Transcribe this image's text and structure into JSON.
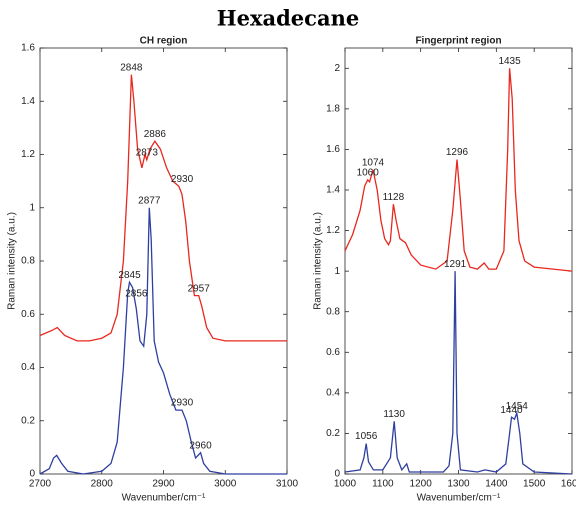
{
  "title": "Hexadecane",
  "chart_data": [
    {
      "type": "line",
      "title": "CH region",
      "xlabel": "Wavenumber/cm⁻¹",
      "ylabel": "Raman intensity (a.u.)",
      "xlim": [
        2700,
        3100
      ],
      "xticks": [
        2700,
        2800,
        2900,
        3000,
        3100
      ],
      "ylim": [
        0,
        1.6
      ],
      "yticks": [
        0,
        0.2,
        0.4,
        0.6,
        0.8,
        1,
        1.2,
        1.4,
        1.6
      ],
      "grid": false,
      "series": [
        {
          "color": "#e8281e",
          "x": [
            2700,
            2720,
            2728,
            2740,
            2760,
            2780,
            2800,
            2815,
            2825,
            2835,
            2842,
            2848,
            2852,
            2858,
            2865,
            2870,
            2873,
            2878,
            2886,
            2895,
            2905,
            2915,
            2925,
            2930,
            2936,
            2942,
            2950,
            2957,
            2962,
            2970,
            2980,
            3000,
            3050,
            3100
          ],
          "values": [
            0.52,
            0.54,
            0.55,
            0.52,
            0.5,
            0.5,
            0.51,
            0.53,
            0.6,
            0.8,
            1.1,
            1.5,
            1.4,
            1.22,
            1.15,
            1.2,
            1.18,
            1.22,
            1.25,
            1.22,
            1.15,
            1.1,
            1.08,
            1.05,
            0.95,
            0.8,
            0.67,
            0.67,
            0.63,
            0.55,
            0.51,
            0.5,
            0.5,
            0.5
          ]
        },
        {
          "color": "#2f3fa0",
          "x": [
            2700,
            2715,
            2722,
            2727,
            2735,
            2745,
            2770,
            2800,
            2815,
            2825,
            2835,
            2842,
            2845,
            2850,
            2856,
            2862,
            2868,
            2873,
            2877,
            2880,
            2885,
            2892,
            2900,
            2910,
            2920,
            2930,
            2937,
            2945,
            2952,
            2960,
            2965,
            2975,
            3000,
            3100
          ],
          "values": [
            0,
            0.02,
            0.06,
            0.07,
            0.04,
            0.01,
            0,
            0.01,
            0.04,
            0.12,
            0.4,
            0.68,
            0.72,
            0.7,
            0.62,
            0.5,
            0.48,
            0.6,
            1.0,
            0.88,
            0.5,
            0.42,
            0.38,
            0.3,
            0.24,
            0.24,
            0.2,
            0.12,
            0.06,
            0.08,
            0.04,
            0.01,
            0,
            0
          ]
        }
      ],
      "annotations": [
        {
          "label": "2848",
          "x": 2848,
          "y": 1.5
        },
        {
          "label": "2886",
          "x": 2886,
          "y": 1.25
        },
        {
          "label": "2873",
          "x": 2873,
          "y": 1.18
        },
        {
          "label": "2930",
          "x": 2930,
          "y": 1.08
        },
        {
          "label": "2877",
          "x": 2877,
          "y": 1.0
        },
        {
          "label": "2845",
          "x": 2845,
          "y": 0.72
        },
        {
          "label": "2856",
          "x": 2856,
          "y": 0.65
        },
        {
          "label": "2957",
          "x": 2957,
          "y": 0.67
        },
        {
          "label": "2930",
          "x": 2930,
          "y": 0.24
        },
        {
          "label": "2960",
          "x": 2960,
          "y": 0.08
        }
      ]
    },
    {
      "type": "line",
      "title": "Fingerprint region",
      "xlabel": "Wavenumber/cm⁻¹",
      "ylabel": "Raman intensity (a.u.)",
      "xlim": [
        1000,
        1600
      ],
      "xticks": [
        1000,
        1100,
        1200,
        1300,
        1400,
        1500,
        1600
      ],
      "ylim": [
        0,
        2.1
      ],
      "yticks": [
        0,
        0.2,
        0.4,
        0.6,
        0.8,
        1,
        1.2,
        1.4,
        1.6,
        1.8,
        2
      ],
      "grid": false,
      "series": [
        {
          "color": "#e8281e",
          "x": [
            1000,
            1020,
            1040,
            1052,
            1060,
            1065,
            1074,
            1085,
            1095,
            1105,
            1115,
            1120,
            1128,
            1135,
            1145,
            1160,
            1175,
            1200,
            1240,
            1270,
            1285,
            1296,
            1305,
            1315,
            1330,
            1350,
            1368,
            1380,
            1400,
            1420,
            1430,
            1435,
            1442,
            1450,
            1460,
            1475,
            1500,
            1550,
            1600
          ],
          "values": [
            1.1,
            1.18,
            1.3,
            1.42,
            1.45,
            1.44,
            1.5,
            1.4,
            1.25,
            1.16,
            1.13,
            1.15,
            1.33,
            1.25,
            1.16,
            1.14,
            1.08,
            1.03,
            1.01,
            1.05,
            1.3,
            1.55,
            1.35,
            1.1,
            1.02,
            1.01,
            1.04,
            1.01,
            1.01,
            1.1,
            1.6,
            2.0,
            1.85,
            1.4,
            1.15,
            1.05,
            1.02,
            1.01,
            1.0
          ]
        },
        {
          "color": "#2f3fa0",
          "x": [
            1000,
            1040,
            1050,
            1056,
            1062,
            1075,
            1100,
            1120,
            1130,
            1138,
            1150,
            1163,
            1170,
            1200,
            1260,
            1275,
            1285,
            1291,
            1296,
            1305,
            1350,
            1370,
            1400,
            1425,
            1435,
            1440,
            1448,
            1454,
            1462,
            1470,
            1500,
            1600
          ],
          "values": [
            0.01,
            0.02,
            0.08,
            0.15,
            0.06,
            0.02,
            0.02,
            0.08,
            0.26,
            0.08,
            0.02,
            0.05,
            0.01,
            0.01,
            0.01,
            0.04,
            0.2,
            1.0,
            0.2,
            0.02,
            0.01,
            0.02,
            0.01,
            0.05,
            0.2,
            0.28,
            0.27,
            0.3,
            0.2,
            0.05,
            0.01,
            0
          ]
        }
      ],
      "annotations": [
        {
          "label": "1435",
          "x": 1435,
          "y": 2.0
        },
        {
          "label": "1296",
          "x": 1296,
          "y": 1.55
        },
        {
          "label": "1074",
          "x": 1074,
          "y": 1.5
        },
        {
          "label": "1060",
          "x": 1060,
          "y": 1.45
        },
        {
          "label": "1128",
          "x": 1128,
          "y": 1.33
        },
        {
          "label": "1291",
          "x": 1291,
          "y": 1.0
        },
        {
          "label": "1130",
          "x": 1130,
          "y": 0.26
        },
        {
          "label": "1056",
          "x": 1056,
          "y": 0.15
        },
        {
          "label": "1440",
          "x": 1440,
          "y": 0.28
        },
        {
          "label": "1454",
          "x": 1454,
          "y": 0.3
        }
      ]
    }
  ]
}
